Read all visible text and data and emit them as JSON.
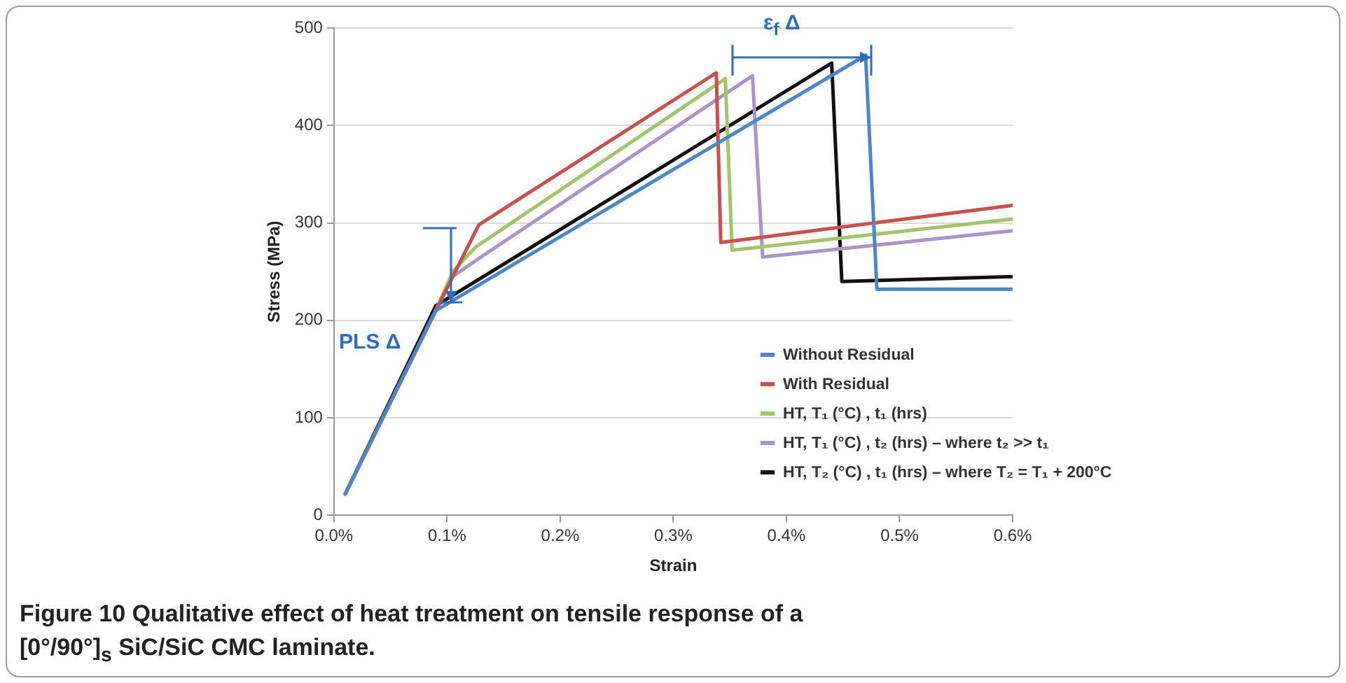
{
  "chart_data": {
    "type": "line",
    "xlabel": "Strain",
    "ylabel": "Stress (MPa)",
    "xlim": [
      0,
      0.6
    ],
    "ylim": [
      0,
      500
    ],
    "xticks": [
      {
        "value": 0,
        "label": "0.0%"
      },
      {
        "value": 0.1,
        "label": "0.1%"
      },
      {
        "value": 0.2,
        "label": "0.2%"
      },
      {
        "value": 0.3,
        "label": "0.3%"
      },
      {
        "value": 0.4,
        "label": "0.4%"
      },
      {
        "value": 0.5,
        "label": "0.5%"
      },
      {
        "value": 0.6,
        "label": "0.6%"
      }
    ],
    "yticks": [
      0,
      100,
      200,
      300,
      400,
      500
    ],
    "grid": "y",
    "legend": "bottom right",
    "line_style": "solid",
    "marker": "none",
    "series": [
      {
        "name": "Without Residual",
        "color": "#4a86c8",
        "x": [
          0.01,
          0.09,
          0.47,
          0.48,
          0.6
        ],
        "values": [
          22,
          210,
          472,
          232,
          232
        ]
      },
      {
        "name": "With Residual",
        "color": "#c9504c",
        "x": [
          0.01,
          0.09,
          0.128,
          0.338,
          0.342,
          0.6
        ],
        "values": [
          22,
          210,
          298,
          454,
          280,
          318
        ]
      },
      {
        "name": "HT,  T₁ (°C) , t₁ (hrs)",
        "color": "#a3c46a",
        "x": [
          0.01,
          0.09,
          0.105,
          0.125,
          0.346,
          0.352,
          0.6
        ],
        "values": [
          22,
          210,
          250,
          275,
          448,
          272,
          304
        ]
      },
      {
        "name": "HT,  T₁ (°C) , t₂ (hrs) – where t₂ >> t₁",
        "color": "#a993c8",
        "x": [
          0.01,
          0.09,
          0.105,
          0.13,
          0.37,
          0.379,
          0.6
        ],
        "values": [
          22,
          210,
          245,
          265,
          451,
          265,
          292
        ]
      },
      {
        "name": "HT,  T₂ (°C) , t₁ (hrs) – where T₂ = T₁ + 200°C",
        "color": "#111111",
        "x": [
          0.01,
          0.09,
          0.44,
          0.449,
          0.6
        ],
        "values": [
          22,
          215,
          464,
          240,
          245
        ]
      }
    ],
    "annotations": [
      "PLS Δ",
      "ε$_{f}$ Δ",
      "Figure 10 Qualitative effect of heat treatment on tensile response of a [0°/90°]$_{s}$ SiC/SiC CMC laminate."
    ]
  }
}
